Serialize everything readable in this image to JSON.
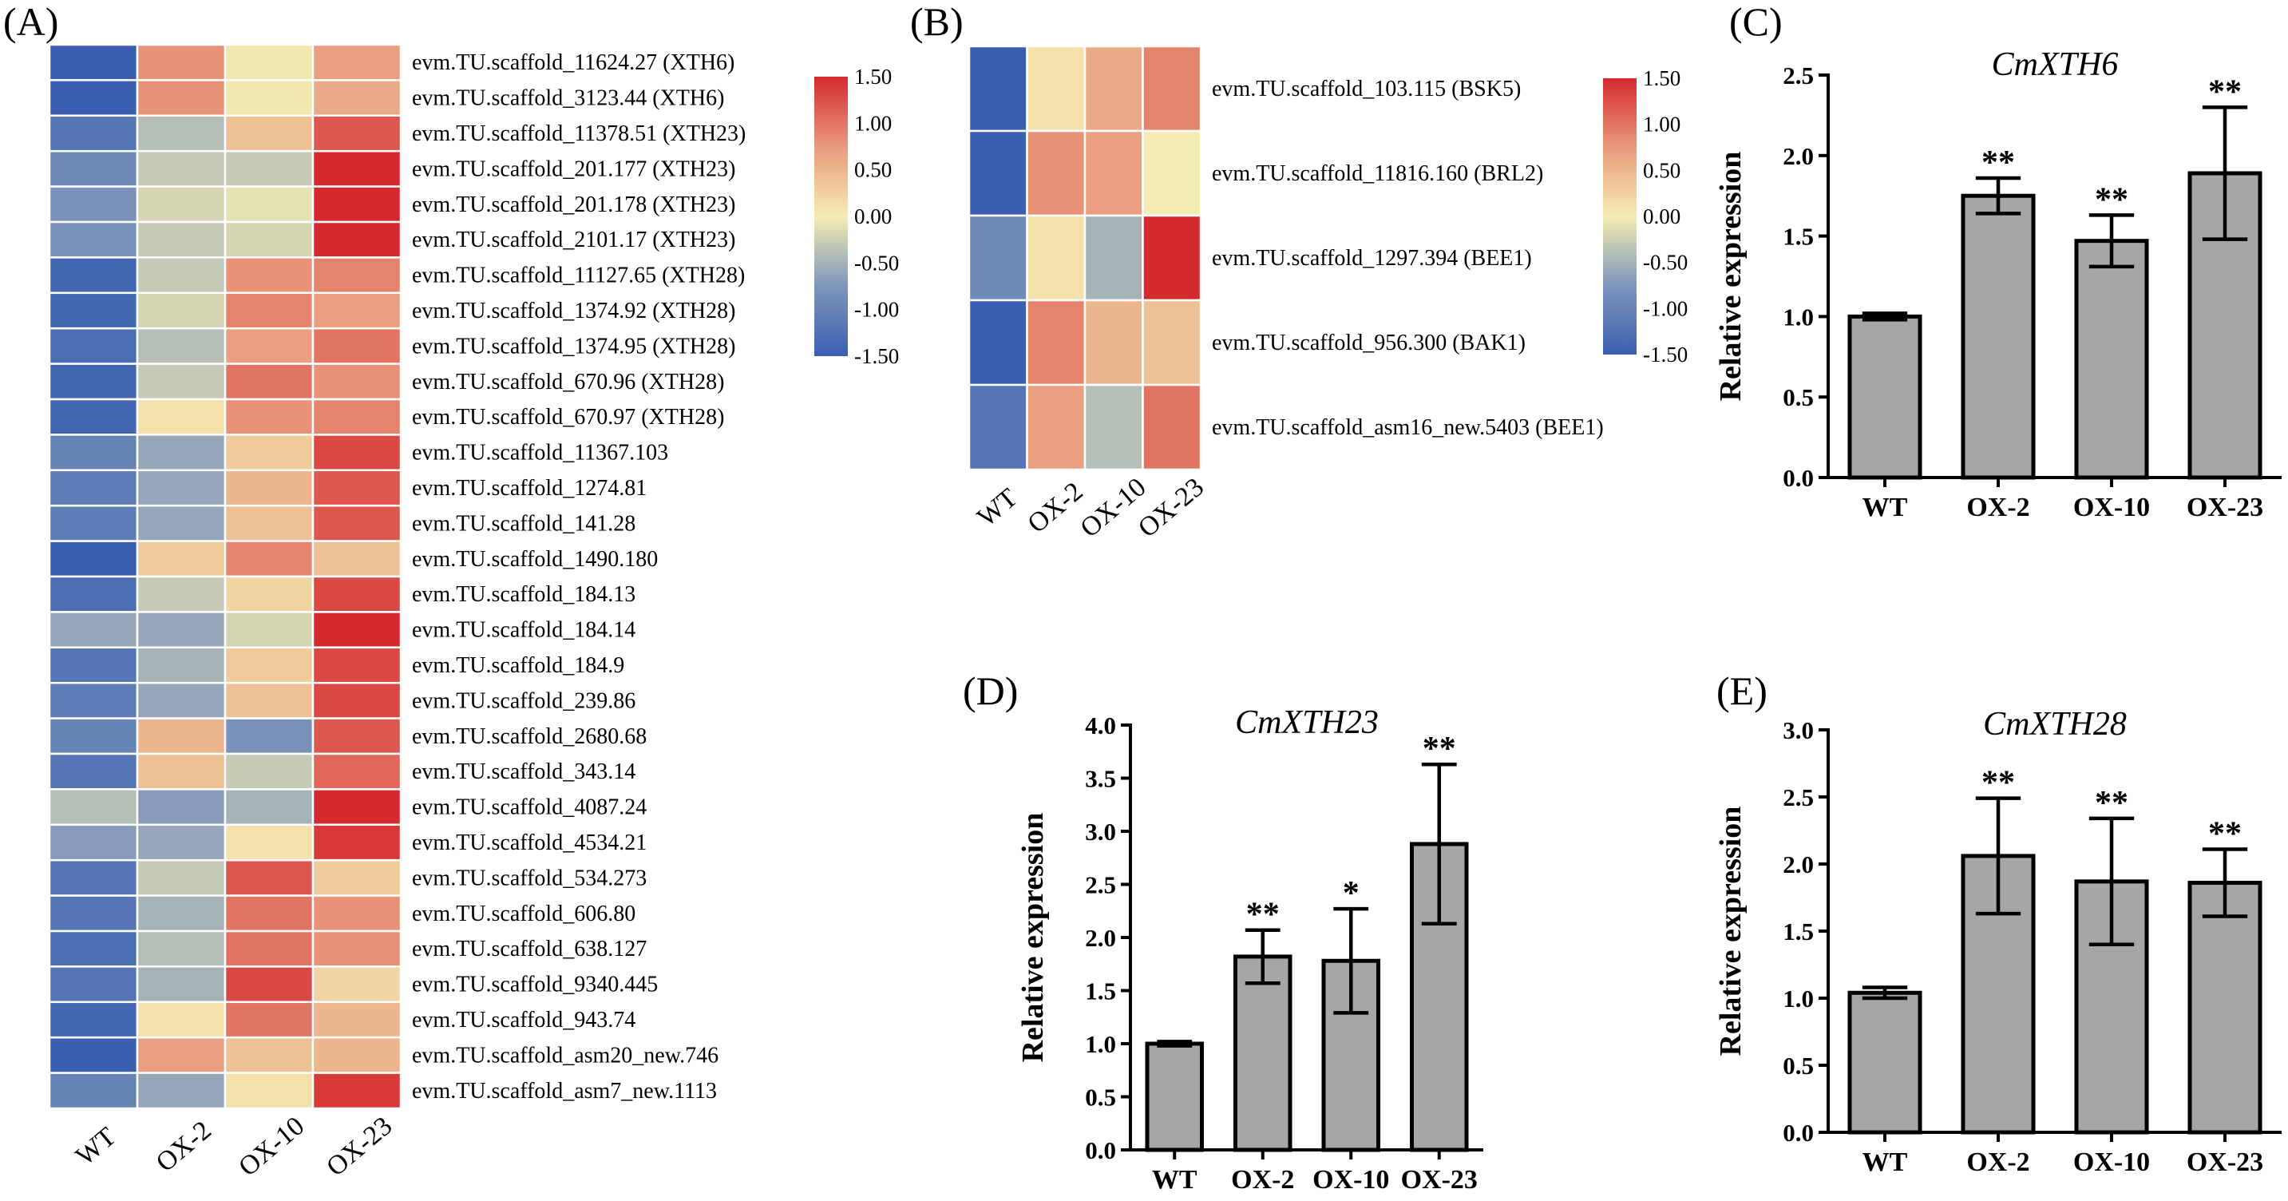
{
  "colors": {
    "scale": [
      "#3a5fb0",
      "#7e96bb",
      "#f4ecb2",
      "#e99a7c",
      "#d42a2e"
    ],
    "bar_fill": "#a6a6a6"
  },
  "chart_data": [
    {
      "panel": "(A)",
      "type": "heatmap",
      "columns": [
        "WT",
        "OX-2",
        "OX-10",
        "OX-23"
      ],
      "rows": [
        "evm.TU.scaffold_11624.27 (XTH6)",
        "evm.TU.scaffold_3123.44 (XTH6)",
        "evm.TU.scaffold_11378.51 (XTH23)",
        "evm.TU.scaffold_201.177 (XTH23)",
        "evm.TU.scaffold_201.178 (XTH23)",
        "evm.TU.scaffold_2101.17 (XTH23)",
        "evm.TU.scaffold_11127.65 (XTH28)",
        "evm.TU.scaffold_1374.92 (XTH28)",
        "evm.TU.scaffold_1374.95 (XTH28)",
        "evm.TU.scaffold_670.96 (XTH28)",
        "evm.TU.scaffold_670.97 (XTH28)",
        "evm.TU.scaffold_11367.103",
        "evm.TU.scaffold_1274.81",
        "evm.TU.scaffold_141.28",
        "evm.TU.scaffold_1490.180",
        "evm.TU.scaffold_184.13",
        "evm.TU.scaffold_184.14",
        "evm.TU.scaffold_184.9",
        "evm.TU.scaffold_239.86",
        "evm.TU.scaffold_2680.68",
        "evm.TU.scaffold_343.14",
        "evm.TU.scaffold_4087.24",
        "evm.TU.scaffold_4534.21",
        "evm.TU.scaffold_534.273",
        "evm.TU.scaffold_606.80",
        "evm.TU.scaffold_638.127",
        "evm.TU.scaffold_9340.445",
        "evm.TU.scaffold_943.74",
        "evm.TU.scaffold_asm20_new.746",
        "evm.TU.scaffold_asm7_new.1113"
      ],
      "values": [
        [
          -1.5,
          0.8,
          0.05,
          0.7
        ],
        [
          -1.5,
          0.8,
          0.05,
          0.6
        ],
        [
          -1.2,
          -0.4,
          0.4,
          1.2
        ],
        [
          -0.9,
          -0.3,
          -0.3,
          1.5
        ],
        [
          -0.8,
          -0.2,
          -0.1,
          1.5
        ],
        [
          -0.8,
          -0.3,
          -0.2,
          1.5
        ],
        [
          -1.4,
          -0.3,
          0.8,
          0.9
        ],
        [
          -1.4,
          -0.2,
          0.9,
          0.7
        ],
        [
          -1.3,
          -0.4,
          0.7,
          1.0
        ],
        [
          -1.4,
          -0.3,
          1.0,
          0.8
        ],
        [
          -1.4,
          0.1,
          0.8,
          0.9
        ],
        [
          -1.0,
          -0.6,
          0.3,
          1.3
        ],
        [
          -1.1,
          -0.6,
          0.5,
          1.2
        ],
        [
          -1.1,
          -0.6,
          0.4,
          1.2
        ],
        [
          -1.5,
          0.3,
          0.9,
          0.4
        ],
        [
          -1.3,
          -0.3,
          0.2,
          1.3
        ],
        [
          -0.6,
          -0.6,
          -0.2,
          1.5
        ],
        [
          -1.2,
          -0.5,
          0.3,
          1.3
        ],
        [
          -1.1,
          -0.6,
          0.4,
          1.3
        ],
        [
          -1.0,
          0.5,
          -0.8,
          1.2
        ],
        [
          -1.2,
          0.4,
          -0.3,
          1.1
        ],
        [
          -0.4,
          -0.7,
          -0.5,
          1.5
        ],
        [
          -0.7,
          -0.6,
          0.1,
          1.4
        ],
        [
          -1.2,
          -0.3,
          1.2,
          0.3
        ],
        [
          -1.2,
          -0.5,
          1.0,
          0.8
        ],
        [
          -1.3,
          -0.4,
          1.0,
          0.8
        ],
        [
          -1.2,
          -0.5,
          1.3,
          0.2
        ],
        [
          -1.4,
          0.1,
          1.0,
          0.5
        ],
        [
          -1.5,
          0.7,
          0.4,
          0.5
        ],
        [
          -1.0,
          -0.6,
          0.1,
          1.4
        ]
      ],
      "colorbar": {
        "range": [
          -1.5,
          1.5
        ],
        "ticks": [
          "1.50",
          "1.00",
          "0.50",
          "0.00",
          "-0.50",
          "-1.00",
          "-1.50"
        ]
      }
    },
    {
      "panel": "(B)",
      "type": "heatmap",
      "columns": [
        "WT",
        "OX-2",
        "OX-10",
        "OX-23"
      ],
      "rows": [
        "evm.TU.scaffold_103.115 (BSK5)",
        "evm.TU.scaffold_11816.160 (BRL2)",
        "evm.TU.scaffold_1297.394 (BEE1)",
        "evm.TU.scaffold_956.300 (BAK1)",
        "evm.TU.scaffold_asm16_new.5403 (BEE1)"
      ],
      "values": [
        [
          -1.5,
          0.1,
          0.6,
          0.9
        ],
        [
          -1.5,
          0.8,
          0.7,
          0.0
        ],
        [
          -0.9,
          0.1,
          -0.5,
          1.5
        ],
        [
          -1.5,
          0.9,
          0.5,
          0.4
        ],
        [
          -1.2,
          0.7,
          -0.4,
          1.0
        ]
      ],
      "colorbar": {
        "range": [
          -1.5,
          1.5
        ],
        "ticks": [
          "1.50",
          "1.00",
          "0.50",
          "0.00",
          "-0.50",
          "-1.00",
          "-1.50"
        ]
      }
    },
    {
      "panel": "(C)",
      "type": "bar",
      "title": "CmXTH6",
      "ylabel": "Relative expression",
      "categories": [
        "WT",
        "OX-2",
        "OX-10",
        "OX-23"
      ],
      "values": [
        1.0,
        1.75,
        1.47,
        1.89
      ],
      "errors": [
        0.02,
        0.11,
        0.16,
        0.41
      ],
      "significance": [
        "",
        "**",
        "**",
        "**"
      ],
      "ylim": [
        0,
        2.5
      ],
      "yticks": [
        "0.0",
        "0.5",
        "1.0",
        "1.5",
        "2.0",
        "2.5"
      ]
    },
    {
      "panel": "(D)",
      "type": "bar",
      "title": "CmXTH23",
      "ylabel": "Relative expression",
      "categories": [
        "WT",
        "OX-2",
        "OX-10",
        "OX-23"
      ],
      "values": [
        1.0,
        1.82,
        1.78,
        2.88
      ],
      "errors": [
        0.02,
        0.25,
        0.49,
        0.75
      ],
      "significance": [
        "",
        "**",
        "*",
        "**"
      ],
      "ylim": [
        0,
        4.0
      ],
      "yticks": [
        "0.0",
        "0.5",
        "1.0",
        "1.5",
        "2.0",
        "2.5",
        "3.0",
        "3.5",
        "4.0"
      ]
    },
    {
      "panel": "(E)",
      "type": "bar",
      "title": "CmXTH28",
      "ylabel": "Relative expression",
      "categories": [
        "WT",
        "OX-2",
        "OX-10",
        "OX-23"
      ],
      "values": [
        1.04,
        2.06,
        1.87,
        1.86
      ],
      "errors": [
        0.04,
        0.43,
        0.47,
        0.25
      ],
      "significance": [
        "",
        "**",
        "**",
        "**"
      ],
      "ylim": [
        0,
        3.0
      ],
      "yticks": [
        "0.0",
        "0.5",
        "1.0",
        "1.5",
        "2.0",
        "2.5",
        "3.0"
      ]
    }
  ]
}
